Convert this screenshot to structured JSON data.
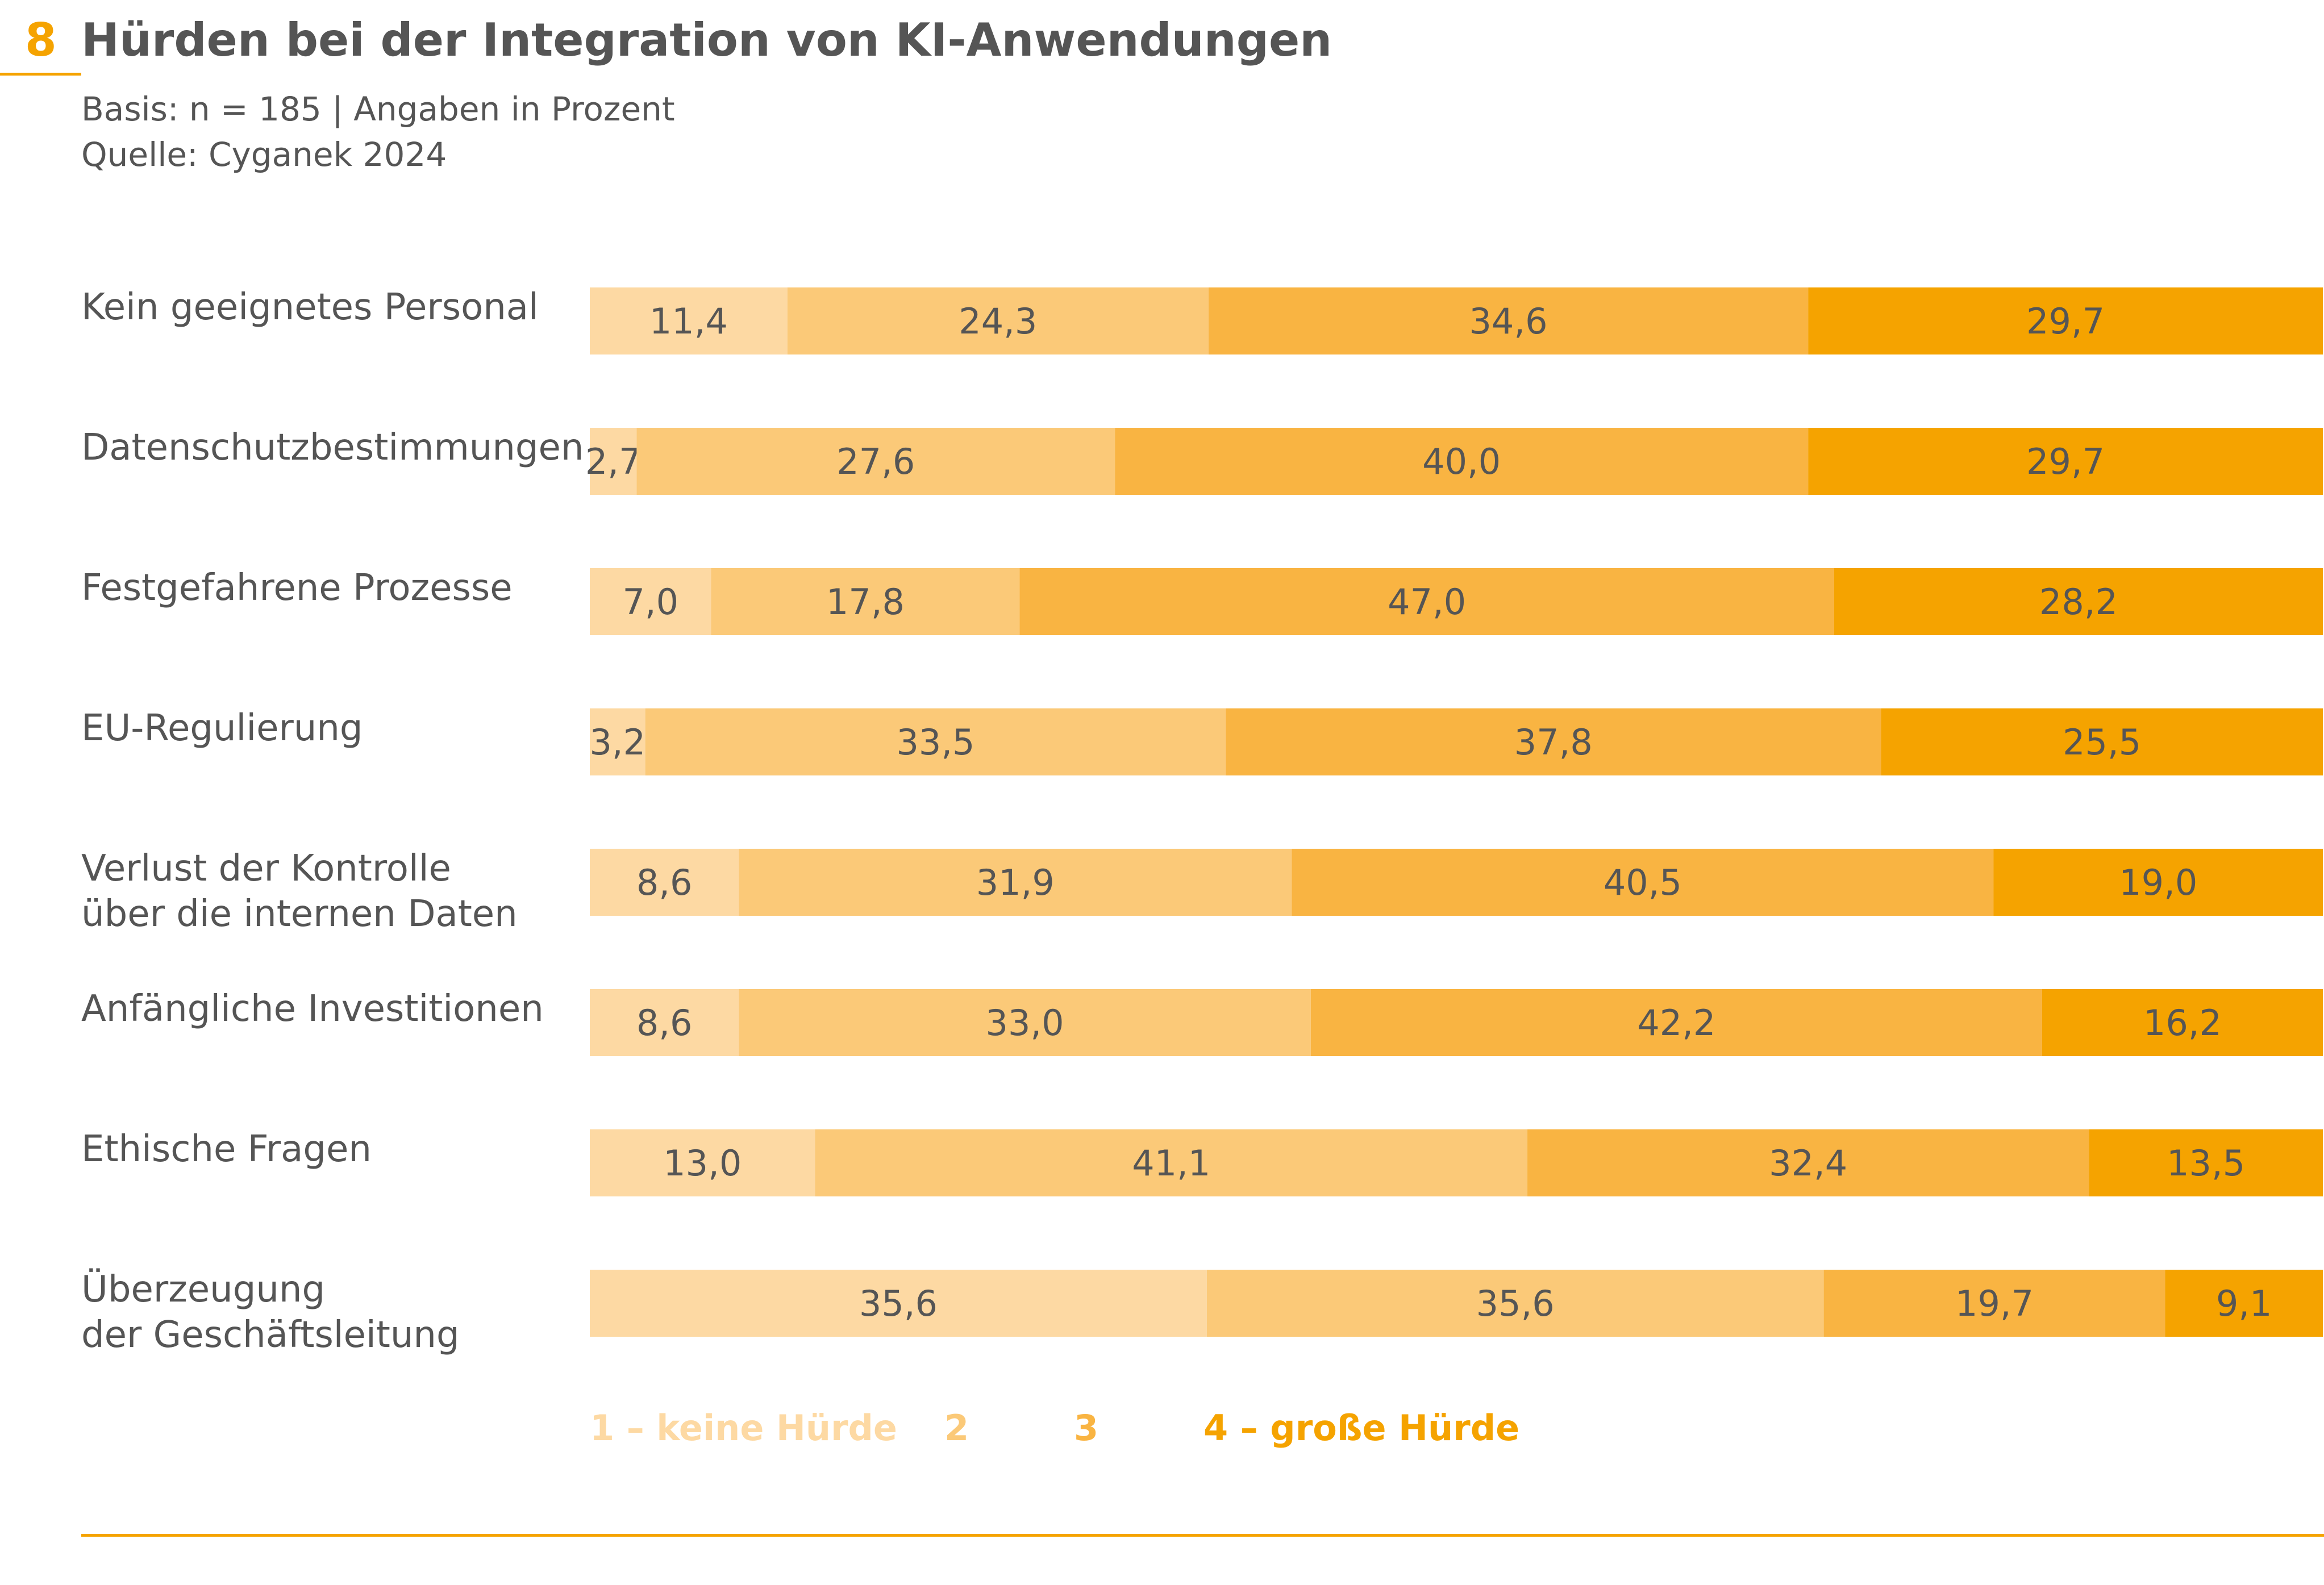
{
  "header": {
    "figure_number": "8",
    "title": "Hürden bei der Integration von KI-Anwendungen",
    "basis": "Basis: n = 185 | Angaben in Prozent",
    "source": "Quelle: Cyganek 2024"
  },
  "colors": {
    "accent": "#f5a300",
    "levels": [
      "#fdd9a3",
      "#fbc978",
      "#f9b442",
      "#f5a300"
    ],
    "legend_text": [
      "#fdd9a3",
      "#fbc978",
      "#f9b442",
      "#f5a300"
    ]
  },
  "chart_data": {
    "type": "bar",
    "orientation": "horizontal",
    "stacked": true,
    "categories": [
      [
        "Kein geeignetes Personal"
      ],
      [
        "Datenschutzbestimmungen"
      ],
      [
        "Festgefahrene Prozesse"
      ],
      [
        "EU-Regulierung"
      ],
      [
        "Verlust der Kontrolle",
        "über die internen Daten"
      ],
      [
        "Anfängliche Investitionen"
      ],
      [
        "Ethische Fragen"
      ],
      [
        "Überzeugung",
        "der Geschäftsleitung"
      ]
    ],
    "series": [
      {
        "name": "1 – keine Hürde",
        "values": [
          11.4,
          2.7,
          7.0,
          3.2,
          8.6,
          8.6,
          13.0,
          35.6
        ],
        "labels": [
          "11,4",
          "2,7",
          "7,0",
          "3,2",
          "8,6",
          "8,6",
          "13,0",
          "35,6"
        ]
      },
      {
        "name": "2",
        "values": [
          24.3,
          27.6,
          17.8,
          33.5,
          31.9,
          33.0,
          41.1,
          35.6
        ],
        "labels": [
          "24,3",
          "27,6",
          "17,8",
          "33,5",
          "31,9",
          "33,0",
          "41,1",
          "35,6"
        ]
      },
      {
        "name": "3",
        "values": [
          34.6,
          40.0,
          47.0,
          37.8,
          40.5,
          42.2,
          32.4,
          19.7
        ],
        "labels": [
          "34,6",
          "40,0",
          "47,0",
          "37,8",
          "40,5",
          "42,2",
          "32,4",
          "19,7"
        ]
      },
      {
        "name": "4 – große Hürde",
        "values": [
          29.7,
          29.7,
          28.2,
          25.5,
          19.0,
          16.2,
          13.5,
          9.1
        ],
        "labels": [
          "29,7",
          "29,7",
          "28,2",
          "25,5",
          "19,0",
          "16,2",
          "13,5",
          "9,1"
        ]
      }
    ],
    "legend_position": "bottom",
    "grid": false
  }
}
